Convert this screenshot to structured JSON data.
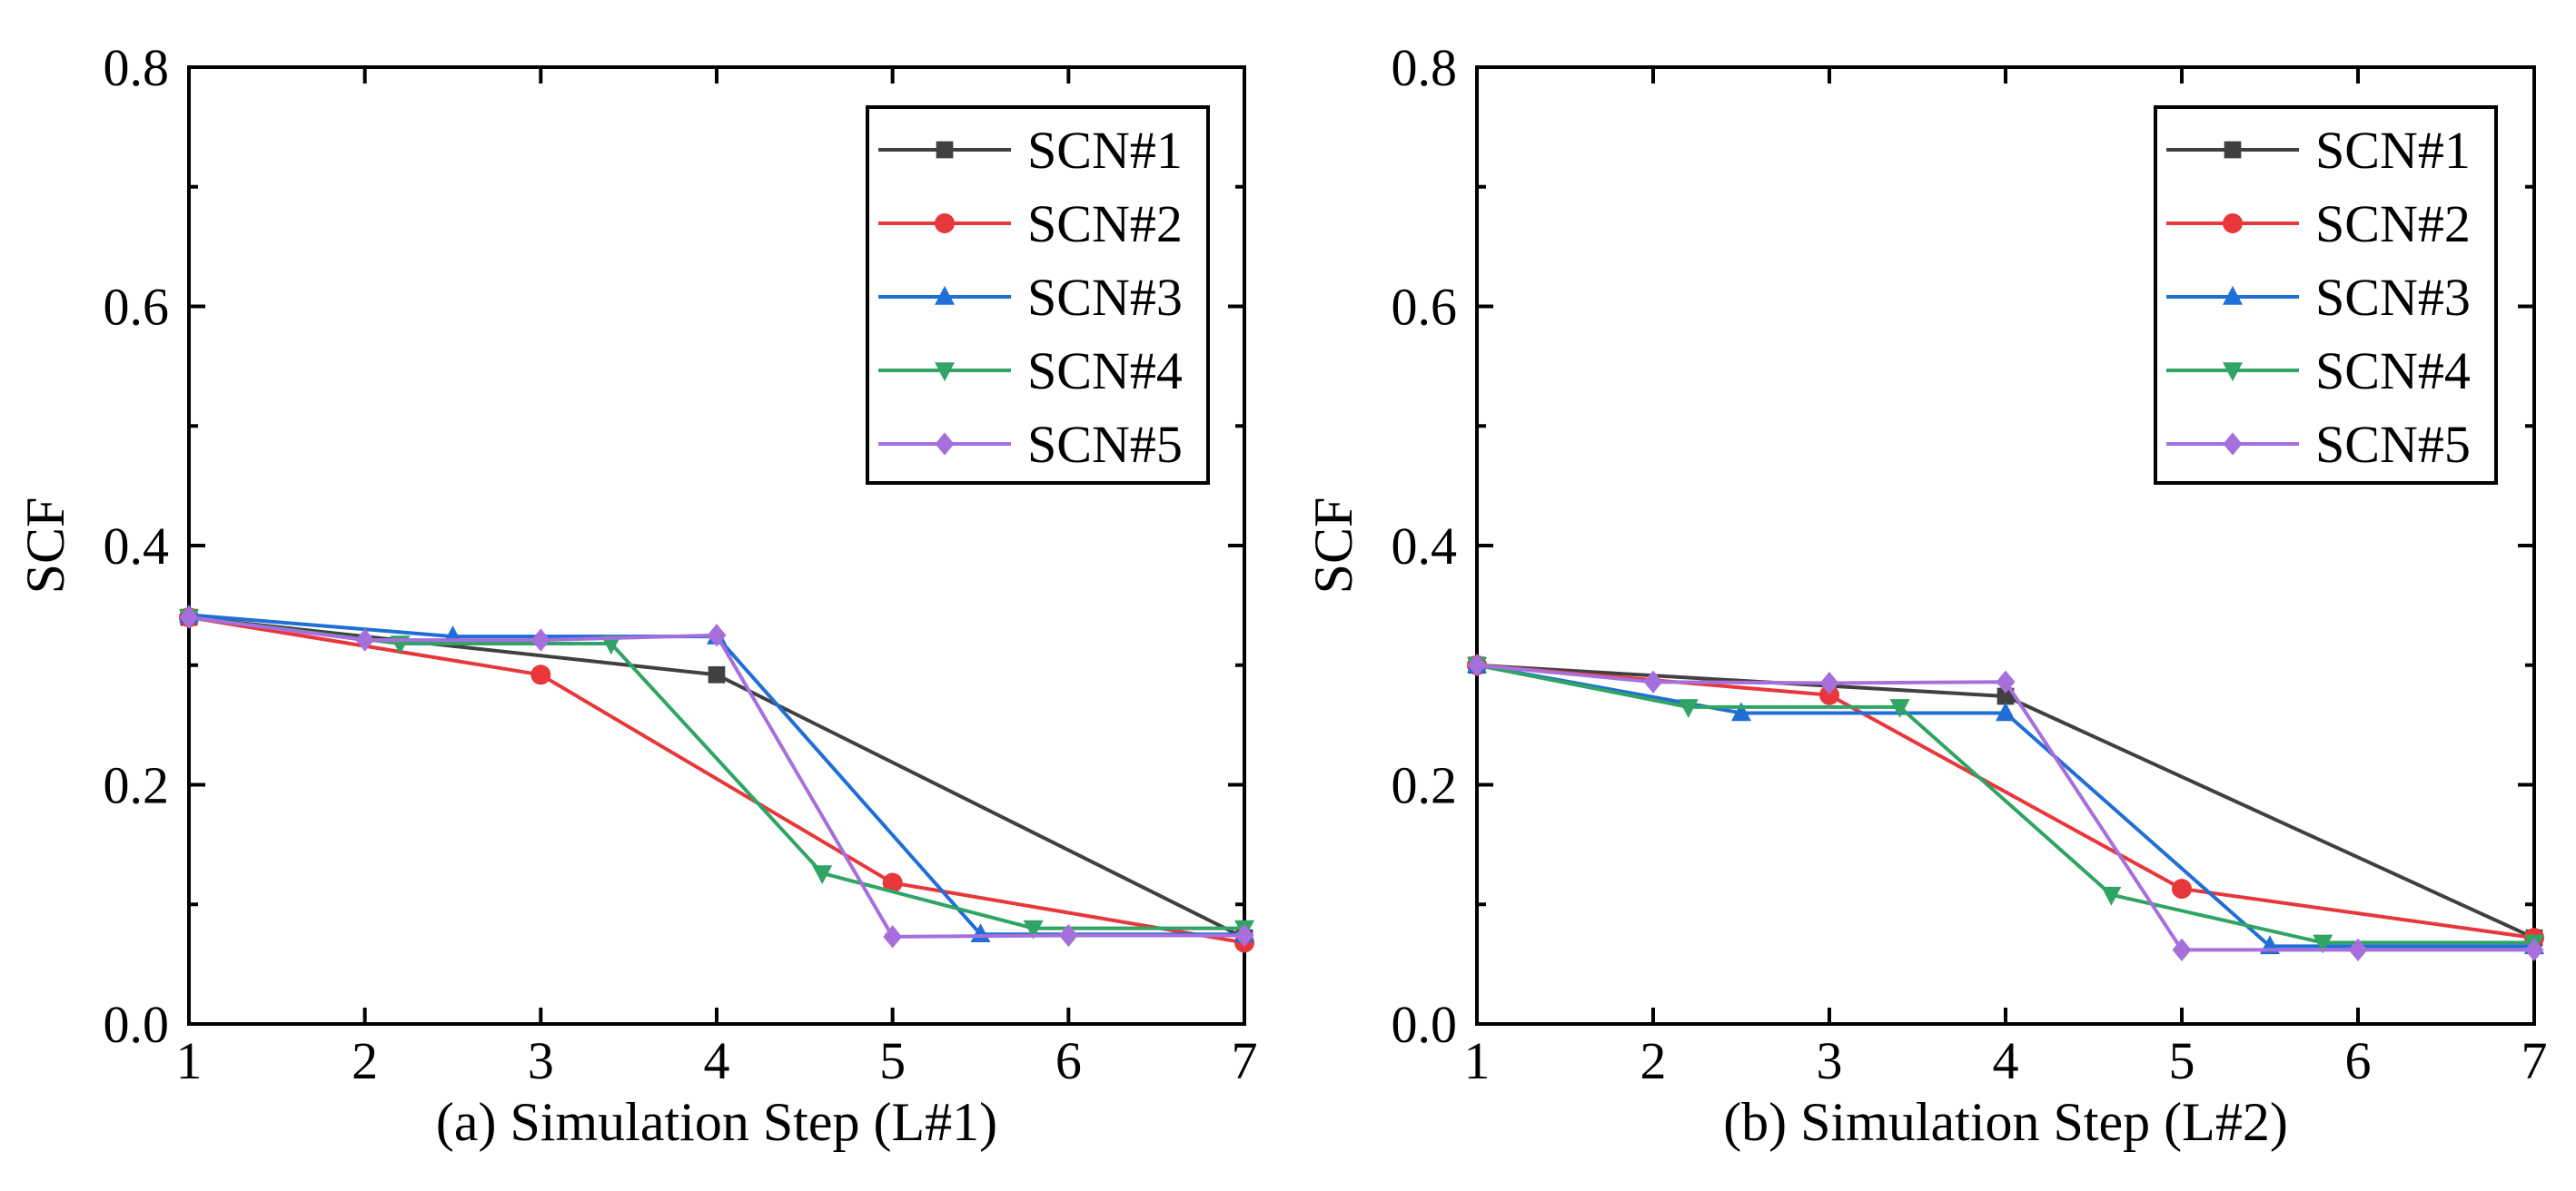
{
  "chart_data": [
    {
      "type": "line",
      "xlabel": "(a) Simulation Step (L#1)",
      "ylabel": "SCF",
      "xlim": [
        1,
        7
      ],
      "ylim": [
        0.0,
        0.8
      ],
      "x_ticks": [
        "1",
        "2",
        "3",
        "4",
        "5",
        "6",
        "7"
      ],
      "y_ticks": [
        "0.0",
        "0.2",
        "0.4",
        "0.6",
        "0.8"
      ],
      "grid": false,
      "legend_position": "top-right",
      "series": [
        {
          "name": "SCN#1",
          "color": "#404040",
          "marker": "square",
          "x": [
            1,
            4,
            7
          ],
          "y": [
            0.34,
            0.292,
            0.072
          ]
        },
        {
          "name": "SCN#2",
          "color": "#e8373a",
          "marker": "circle",
          "x": [
            1,
            3,
            5,
            7
          ],
          "y": [
            0.34,
            0.292,
            0.118,
            0.068
          ]
        },
        {
          "name": "SCN#3",
          "color": "#1f6fd6",
          "marker": "triangle-up",
          "x": [
            1,
            2.5,
            4,
            5.5,
            7
          ],
          "y": [
            0.342,
            0.324,
            0.324,
            0.075,
            0.075
          ]
        },
        {
          "name": "SCN#4",
          "color": "#2fa465",
          "marker": "triangle-down",
          "x": [
            1,
            2.2,
            3.4,
            4.6,
            5.8,
            7
          ],
          "y": [
            0.34,
            0.318,
            0.318,
            0.126,
            0.08,
            0.08
          ]
        },
        {
          "name": "SCN#5",
          "color": "#a66fdb",
          "marker": "diamond",
          "x": [
            1,
            2,
            3,
            4,
            5,
            6,
            7
          ],
          "y": [
            0.34,
            0.321,
            0.321,
            0.325,
            0.073,
            0.074,
            0.074
          ]
        }
      ]
    },
    {
      "type": "line",
      "xlabel": "(b) Simulation Step (L#2)",
      "ylabel": "SCF",
      "xlim": [
        1,
        7
      ],
      "ylim": [
        0.0,
        0.8
      ],
      "x_ticks": [
        "1",
        "2",
        "3",
        "4",
        "5",
        "6",
        "7"
      ],
      "y_ticks": [
        "0.0",
        "0.2",
        "0.4",
        "0.6",
        "0.8"
      ],
      "grid": false,
      "legend_position": "top-right",
      "series": [
        {
          "name": "SCN#1",
          "color": "#404040",
          "marker": "square",
          "x": [
            1,
            4,
            7
          ],
          "y": [
            0.3,
            0.274,
            0.072
          ]
        },
        {
          "name": "SCN#2",
          "color": "#e8373a",
          "marker": "circle",
          "x": [
            1,
            3,
            5,
            7
          ],
          "y": [
            0.3,
            0.275,
            0.113,
            0.072
          ]
        },
        {
          "name": "SCN#3",
          "color": "#1f6fd6",
          "marker": "triangle-up",
          "x": [
            1,
            2.5,
            4,
            5.5,
            7
          ],
          "y": [
            0.3,
            0.26,
            0.26,
            0.065,
            0.065
          ]
        },
        {
          "name": "SCN#4",
          "color": "#2fa465",
          "marker": "triangle-down",
          "x": [
            1,
            2.2,
            3.4,
            4.6,
            5.8,
            7
          ],
          "y": [
            0.3,
            0.265,
            0.265,
            0.108,
            0.068,
            0.068
          ]
        },
        {
          "name": "SCN#5",
          "color": "#a66fdb",
          "marker": "diamond",
          "x": [
            1,
            2,
            3,
            4,
            5,
            6,
            7
          ],
          "y": [
            0.3,
            0.286,
            0.285,
            0.286,
            0.062,
            0.062,
            0.062
          ]
        }
      ]
    }
  ]
}
